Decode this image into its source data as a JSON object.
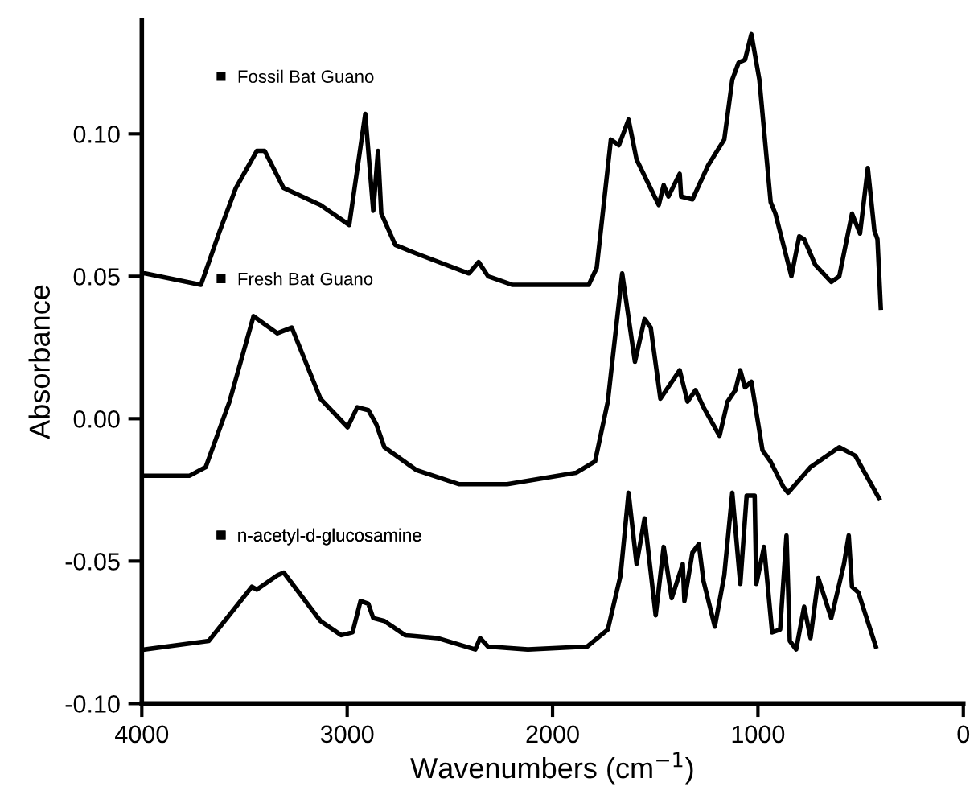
{
  "chart_data": {
    "type": "line",
    "xlabel": "Wavenumbers (cm$^{−1}$)",
    "ylabel": "Absorbance",
    "xlim": [
      4000,
      0
    ],
    "xticks": [
      4000,
      3000,
      2000,
      1000,
      0
    ],
    "ylim": [
      -0.1,
      0.14
    ],
    "yticks": [
      {
        "value": 0.1,
        "label": "0.10"
      },
      {
        "value": 0.05,
        "label": "0.05"
      },
      {
        "value": 0.0,
        "label": "0.00"
      },
      {
        "value": -0.05,
        "label": "-0.05"
      },
      {
        "value": -0.1,
        "label": "-0.10"
      }
    ],
    "grid": false,
    "legend": "top left",
    "line_style": "solid",
    "marker": "none",
    "series": [
      {
        "name": "Fossil Bat Guano",
        "color": "#000000",
        "x": [
          4000,
          3984,
          3712,
          3620,
          3542,
          3440,
          3402,
          3310,
          3130,
          2990,
          2912,
          2873,
          2850,
          2834,
          2766,
          2664,
          2407,
          2360,
          2314,
          2197,
          1824,
          1785,
          1716,
          1677,
          1630,
          1591,
          1483,
          1459,
          1436,
          1381,
          1374,
          1319,
          1242,
          1164,
          1125,
          1094,
          1063,
          1032,
          993,
          938,
          915,
          837,
          799,
          775,
          721,
          643,
          604,
          542,
          503,
          465,
          433,
          418,
          402
        ],
        "values": [
          0.051,
          0.051,
          0.047,
          0.066,
          0.081,
          0.094,
          0.094,
          0.081,
          0.075,
          0.068,
          0.107,
          0.073,
          0.094,
          0.072,
          0.061,
          0.058,
          0.051,
          0.055,
          0.05,
          0.047,
          0.047,
          0.053,
          0.098,
          0.096,
          0.105,
          0.091,
          0.075,
          0.082,
          0.078,
          0.086,
          0.078,
          0.077,
          0.089,
          0.098,
          0.119,
          0.125,
          0.126,
          0.135,
          0.119,
          0.076,
          0.072,
          0.05,
          0.064,
          0.063,
          0.054,
          0.048,
          0.05,
          0.072,
          0.065,
          0.088,
          0.066,
          0.063,
          0.039
        ]
      },
      {
        "name": "Fresh Bat Guano",
        "color": "#000000",
        "x": [
          3984,
          3767,
          3689,
          3573,
          3456,
          3340,
          3270,
          3130,
          2998,
          2951,
          2897,
          2858,
          2819,
          2664,
          2454,
          2221,
          1886,
          1793,
          1731,
          1661,
          1599,
          1552,
          1522,
          1475,
          1381,
          1343,
          1304,
          1265,
          1187,
          1148,
          1110,
          1086,
          1063,
          1032,
          978,
          939,
          876,
          853,
          744,
          604,
          526,
          410
        ],
        "values": [
          -0.02,
          -0.02,
          -0.017,
          0.006,
          0.036,
          0.03,
          0.032,
          0.007,
          -0.003,
          0.004,
          0.003,
          -0.002,
          -0.01,
          -0.018,
          -0.023,
          -0.023,
          -0.019,
          -0.015,
          0.006,
          0.051,
          0.02,
          0.035,
          0.032,
          0.007,
          0.017,
          0.006,
          0.01,
          0.004,
          -0.006,
          0.006,
          0.01,
          0.017,
          0.011,
          0.013,
          -0.011,
          -0.015,
          -0.024,
          -0.026,
          -0.017,
          -0.01,
          -0.013,
          -0.028
        ]
      },
      {
        "name": "n-acetyl-d-glucosamine",
        "color": "#000000",
        "x": [
          3984,
          3674,
          3464,
          3440,
          3340,
          3309,
          3130,
          3029,
          2974,
          2935,
          2897,
          2873,
          2819,
          2718,
          2562,
          2376,
          2353,
          2314,
          2120,
          1832,
          1731,
          1669,
          1630,
          1591,
          1552,
          1498,
          1459,
          1420,
          1366,
          1358,
          1319,
          1288,
          1265,
          1210,
          1164,
          1125,
          1086,
          1055,
          1016,
          1008,
          970,
          931,
          892,
          861,
          845,
          814,
          775,
          744,
          706,
          643,
          581,
          558,
          542,
          511,
          426
        ],
        "values": [
          -0.081,
          -0.078,
          -0.059,
          -0.06,
          -0.055,
          -0.054,
          -0.071,
          -0.076,
          -0.075,
          -0.064,
          -0.065,
          -0.07,
          -0.071,
          -0.076,
          -0.077,
          -0.081,
          -0.077,
          -0.08,
          -0.081,
          -0.08,
          -0.074,
          -0.055,
          -0.026,
          -0.051,
          -0.035,
          -0.069,
          -0.045,
          -0.063,
          -0.051,
          -0.064,
          -0.047,
          -0.044,
          -0.057,
          -0.073,
          -0.055,
          -0.026,
          -0.058,
          -0.027,
          -0.027,
          -0.058,
          -0.045,
          -0.075,
          -0.074,
          -0.041,
          -0.078,
          -0.081,
          -0.066,
          -0.077,
          -0.056,
          -0.07,
          -0.051,
          -0.041,
          -0.059,
          -0.061,
          -0.08
        ]
      }
    ]
  }
}
